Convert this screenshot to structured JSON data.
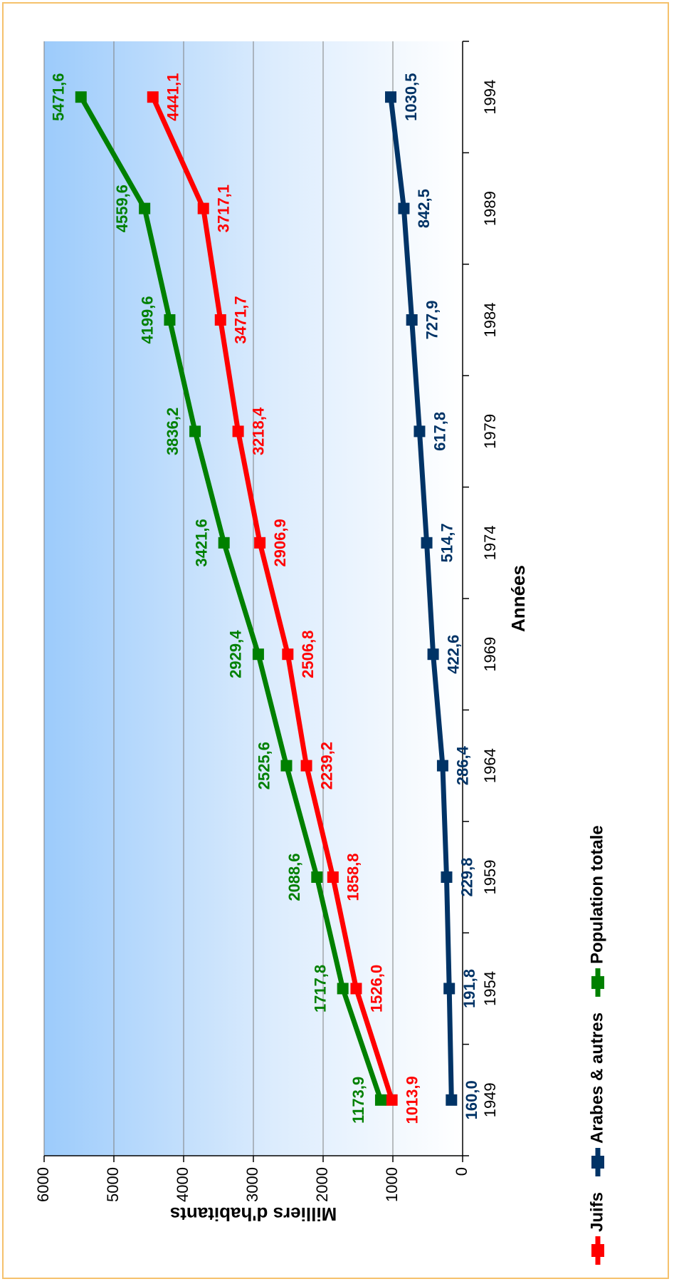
{
  "chart_data": {
    "type": "line",
    "title": "",
    "xlabel": "Années",
    "ylabel": "Milliers d'habitants",
    "x": [
      1949,
      1954,
      1959,
      1964,
      1969,
      1974,
      1979,
      1984,
      1989,
      1994
    ],
    "x_ticks": [
      "1949",
      "1954",
      "1959",
      "1964",
      "1969",
      "1974",
      "1979",
      "1984",
      "1989",
      "1994"
    ],
    "ylim": [
      0,
      6000
    ],
    "y_ticks": [
      "0",
      "1000",
      "2000",
      "3000",
      "4000",
      "5000",
      "6000"
    ],
    "grid": true,
    "legend_position": "bottom",
    "series": [
      {
        "name": "Juifs",
        "color": "#ff0000",
        "values": [
          1013.9,
          1526.0,
          1858.8,
          2239.2,
          2506.8,
          2906.9,
          3218.4,
          3471.7,
          3717.1,
          4441.1
        ],
        "labels": [
          "1013,9",
          "1526,0",
          "1858,8",
          "2239,2",
          "2506,8",
          "2906,9",
          "3218,4",
          "3471,7",
          "3717,1",
          "4441,1"
        ]
      },
      {
        "name": "Arabes & autres",
        "color": "#003366",
        "values": [
          160.0,
          191.8,
          229.8,
          286.4,
          422.6,
          514.7,
          617.8,
          727.9,
          842.5,
          1030.5
        ],
        "labels": [
          "160,0",
          "191,8",
          "229,8",
          "286,4",
          "422,6",
          "514,7",
          "617,8",
          "727,9",
          "842,5",
          "1030,5"
        ]
      },
      {
        "name": "Population totale",
        "color": "#008000",
        "values": [
          1173.9,
          1717.8,
          2088.6,
          2525.6,
          2929.4,
          3421.6,
          3836.2,
          4199.6,
          4559.6,
          5471.6
        ],
        "labels": [
          "1173,9",
          "1717,8",
          "2088,6",
          "2525,6",
          "2929,4",
          "3421,6",
          "3836,2",
          "4199,6",
          "4559,6",
          "5471,6"
        ]
      }
    ]
  }
}
